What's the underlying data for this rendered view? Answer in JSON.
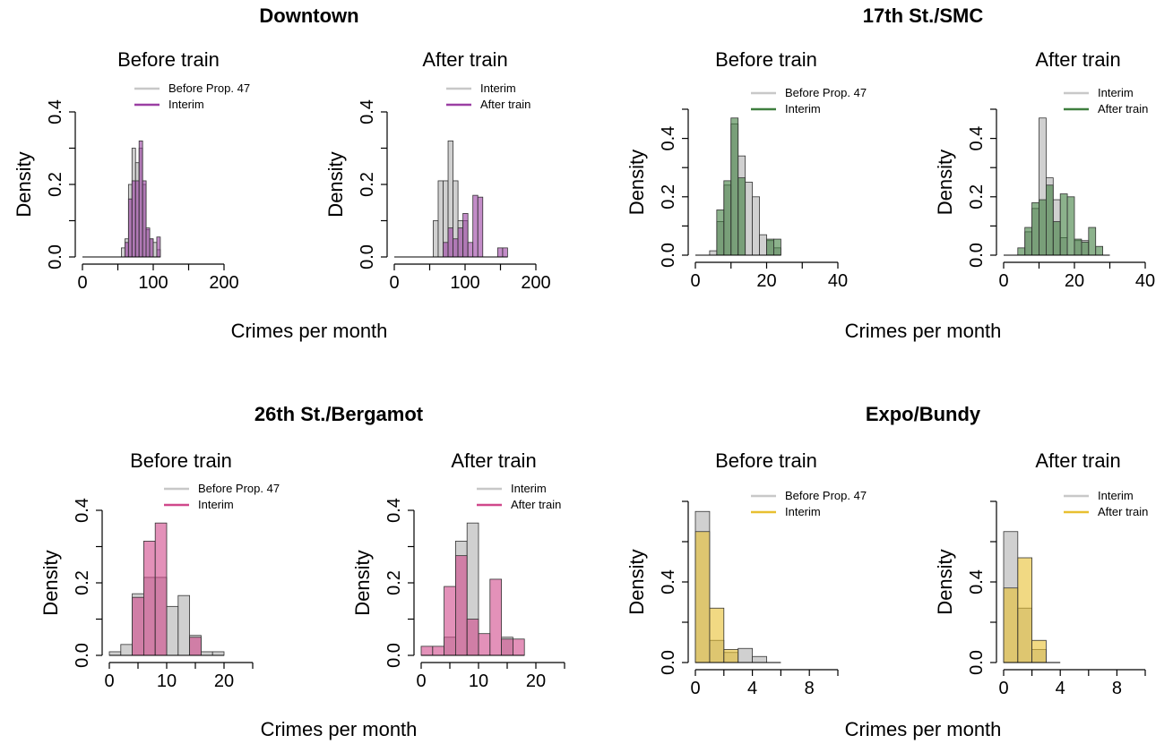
{
  "colors": {
    "gray": "#c8c8c8",
    "purple": "#9b3fa3",
    "green": "#3f7f3f",
    "pink": "#d0488b",
    "gold": "#e8c030",
    "bar_outline": "#333333"
  },
  "chart_data": [
    {
      "type": "histogram",
      "group_title": "Downtown",
      "title": "Before train",
      "xlabel": "",
      "ylabel": "Density",
      "xlim": [
        0,
        200
      ],
      "xticks": [
        0,
        100,
        200
      ],
      "ylim": [
        0,
        0.4
      ],
      "yticks": [
        "0.0",
        "0.2",
        "0.4"
      ],
      "color": "purple",
      "legend": [
        "Before Prop. 47",
        "Interim"
      ],
      "series": [
        {
          "name": "Before Prop. 47",
          "bins": [
            [
              50,
              55,
              0.0
            ],
            [
              55,
              60,
              0.025
            ],
            [
              60,
              65,
              0.05
            ],
            [
              65,
              70,
              0.2
            ],
            [
              70,
              75,
              0.3
            ],
            [
              75,
              80,
              0.26
            ],
            [
              80,
              85,
              0.3
            ],
            [
              85,
              90,
              0.2
            ],
            [
              90,
              95,
              0.075
            ],
            [
              95,
              100,
              0.05
            ],
            [
              100,
              105,
              0.04
            ],
            [
              105,
              110,
              0.02
            ]
          ]
        },
        {
          "name": "Interim",
          "bins": [
            [
              55,
              60,
              0.0
            ],
            [
              60,
              65,
              0.04
            ],
            [
              65,
              70,
              0.16
            ],
            [
              70,
              75,
              0.21
            ],
            [
              75,
              80,
              0.21
            ],
            [
              80,
              85,
              0.32
            ],
            [
              85,
              90,
              0.21
            ],
            [
              90,
              95,
              0.08
            ],
            [
              95,
              100,
              0.05
            ],
            [
              100,
              105,
              0.0
            ],
            [
              105,
              110,
              0.055
            ]
          ]
        }
      ]
    },
    {
      "type": "histogram",
      "group_title": "",
      "title": "After train",
      "xlabel": "",
      "ylabel": "Density",
      "xlim": [
        0,
        200
      ],
      "xticks": [
        0,
        100,
        200
      ],
      "ylim": [
        0,
        0.4
      ],
      "yticks": [
        "0.0",
        "0.2",
        "0.4"
      ],
      "color": "purple",
      "legend": [
        "Interim",
        "After train"
      ],
      "series": [
        {
          "name": "Interim",
          "bins": [
            [
              55,
              62,
              0.1
            ],
            [
              62,
              69,
              0.21
            ],
            [
              69,
              76,
              0.21
            ],
            [
              76,
              83,
              0.32
            ],
            [
              83,
              90,
              0.21
            ],
            [
              90,
              97,
              0.1
            ],
            [
              97,
              104,
              0.1
            ],
            [
              104,
              111,
              0.0
            ]
          ]
        },
        {
          "name": "After train",
          "bins": [
            [
              69,
              76,
              0.04
            ],
            [
              76,
              83,
              0.08
            ],
            [
              83,
              90,
              0.05
            ],
            [
              90,
              97,
              0.08
            ],
            [
              97,
              104,
              0.12
            ],
            [
              104,
              111,
              0.04
            ],
            [
              111,
              118,
              0.17
            ],
            [
              118,
              125,
              0.165
            ],
            [
              125,
              132,
              0.0
            ],
            [
              132,
              139,
              0.0
            ],
            [
              139,
              146,
              0.0
            ],
            [
              146,
              153,
              0.025
            ],
            [
              153,
              160,
              0.025
            ]
          ]
        }
      ]
    },
    {
      "type": "histogram",
      "group_title": "17th St./SMC",
      "title": "Before train",
      "xlabel": "",
      "ylabel": "Density",
      "xlim": [
        0,
        40
      ],
      "xticks": [
        0,
        20,
        40
      ],
      "ylim": [
        0,
        0.5
      ],
      "yticks": [
        "0.0",
        "0.2",
        "0.4"
      ],
      "color": "green",
      "legend": [
        "Before Prop. 47",
        "Interim"
      ],
      "series": [
        {
          "name": "Before Prop. 47",
          "bins": [
            [
              2,
              4,
              0.0
            ],
            [
              4,
              6,
              0.015
            ],
            [
              6,
              8,
              0.115
            ],
            [
              8,
              10,
              0.24
            ],
            [
              10,
              12,
              0.45
            ],
            [
              12,
              14,
              0.34
            ],
            [
              14,
              16,
              0.25
            ],
            [
              16,
              18,
              0.2
            ],
            [
              18,
              20,
              0.07
            ],
            [
              20,
              22,
              0.05
            ],
            [
              22,
              24,
              0.025
            ]
          ]
        },
        {
          "name": "Interim",
          "bins": [
            [
              6,
              8,
              0.0
            ],
            [
              6,
              8,
              0.155
            ],
            [
              8,
              10,
              0.0
            ],
            [
              8,
              10,
              0.255
            ],
            [
              10,
              12,
              0.47
            ],
            [
              12,
              14,
              0.265
            ],
            [
              14,
              16,
              0.0
            ],
            [
              16,
              18,
              0.0
            ],
            [
              18,
              20,
              0.0
            ],
            [
              20,
              22,
              0.055
            ],
            [
              22,
              24,
              0.055
            ]
          ]
        }
      ]
    },
    {
      "type": "histogram",
      "group_title": "",
      "title": "After train",
      "xlabel": "",
      "ylabel": "Density",
      "xlim": [
        0,
        40
      ],
      "xticks": [
        0,
        20,
        40
      ],
      "ylim": [
        0,
        0.5
      ],
      "yticks": [
        "0.0",
        "0.2",
        "0.4"
      ],
      "color": "green",
      "legend": [
        "Interim",
        "After train"
      ],
      "series": [
        {
          "name": "Interim",
          "bins": [
            [
              6,
              8,
              0.08
            ],
            [
              8,
              10,
              0.16
            ],
            [
              10,
              12,
              0.47
            ],
            [
              12,
              14,
              0.265
            ],
            [
              14,
              16,
              0.19
            ],
            [
              16,
              18,
              0.06
            ],
            [
              18,
              20,
              0.0
            ],
            [
              20,
              22,
              0.05
            ],
            [
              22,
              24,
              0.05
            ]
          ]
        },
        {
          "name": "After train",
          "bins": [
            [
              4,
              6,
              0.025
            ],
            [
              6,
              8,
              0.095
            ],
            [
              8,
              10,
              0.18
            ],
            [
              10,
              12,
              0.19
            ],
            [
              12,
              14,
              0.24
            ],
            [
              14,
              16,
              0.115
            ],
            [
              16,
              18,
              0.21
            ],
            [
              18,
              20,
              0.2
            ],
            [
              20,
              22,
              0.055
            ],
            [
              22,
              24,
              0.045
            ],
            [
              24,
              26,
              0.095
            ],
            [
              26,
              28,
              0.03
            ],
            [
              28,
              30,
              0.0
            ]
          ]
        }
      ]
    },
    {
      "type": "histogram",
      "group_title": "26th St./Bergamot",
      "title": "Before train",
      "xlabel": "",
      "ylabel": "Density",
      "xlim": [
        0,
        25
      ],
      "xticks": [
        0,
        10,
        20
      ],
      "ylim": [
        0,
        0.4
      ],
      "yticks": [
        "0.0",
        "0.2",
        "0.4"
      ],
      "color": "pink",
      "legend": [
        "Before Prop. 47",
        "Interim"
      ],
      "series": [
        {
          "name": "Before Prop. 47",
          "bins": [
            [
              0,
              2,
              0.01
            ],
            [
              2,
              4,
              0.03
            ],
            [
              4,
              6,
              0.17
            ],
            [
              6,
              8,
              0.215
            ],
            [
              8,
              10,
              0.215
            ],
            [
              10,
              12,
              0.135
            ],
            [
              12,
              14,
              0.165
            ],
            [
              14,
              16,
              0.055
            ],
            [
              16,
              18,
              0.01
            ],
            [
              18,
              20,
              0.01
            ]
          ]
        },
        {
          "name": "Interim",
          "bins": [
            [
              4,
              6,
              0.16
            ],
            [
              6,
              8,
              0.315
            ],
            [
              8,
              10,
              0.365
            ],
            [
              10,
              12,
              0.0
            ],
            [
              12,
              14,
              0.0
            ],
            [
              14,
              16,
              0.05
            ]
          ]
        }
      ]
    },
    {
      "type": "histogram",
      "group_title": "",
      "title": "After train",
      "xlabel": "",
      "ylabel": "Density",
      "xlim": [
        0,
        25
      ],
      "xticks": [
        0,
        10,
        20
      ],
      "ylim": [
        0,
        0.4
      ],
      "yticks": [
        "0.0",
        "0.2",
        "0.4"
      ],
      "color": "pink",
      "legend": [
        "Interim",
        "After train"
      ],
      "series": [
        {
          "name": "Interim",
          "bins": [
            [
              4,
              6,
              0.05
            ],
            [
              6,
              8,
              0.315
            ],
            [
              8,
              10,
              0.365
            ],
            [
              10,
              12,
              0.0
            ],
            [
              12,
              14,
              0.0
            ],
            [
              14,
              16,
              0.05
            ]
          ]
        },
        {
          "name": "After train",
          "bins": [
            [
              0,
              2,
              0.025
            ],
            [
              2,
              4,
              0.025
            ],
            [
              4,
              6,
              0.19
            ],
            [
              6,
              8,
              0.275
            ],
            [
              8,
              10,
              0.1
            ],
            [
              10,
              12,
              0.06
            ],
            [
              12,
              14,
              0.21
            ],
            [
              14,
              16,
              0.045
            ],
            [
              16,
              18,
              0.045
            ]
          ]
        }
      ]
    },
    {
      "type": "histogram",
      "group_title": "Expo/Bundy",
      "title": "Before train",
      "xlabel": "",
      "ylabel": "Density",
      "xlim": [
        0,
        10
      ],
      "xticks": [
        0,
        4,
        8
      ],
      "ylim": [
        0,
        0.8
      ],
      "yticks": [
        "0.0",
        "0.4"
      ],
      "color": "gold",
      "legend": [
        "Before Prop. 47",
        "Interim"
      ],
      "series": [
        {
          "name": "Before Prop. 47",
          "bins": [
            [
              0,
              1,
              0.75
            ],
            [
              1,
              2,
              0.11
            ],
            [
              2,
              3,
              0.05
            ],
            [
              3,
              4,
              0.07
            ],
            [
              4,
              5,
              0.03
            ],
            [
              5,
              6,
              0.0
            ]
          ]
        },
        {
          "name": "Interim",
          "bins": [
            [
              0,
              1,
              0.65
            ],
            [
              1,
              2,
              0.27
            ],
            [
              2,
              3,
              0.065
            ],
            [
              3,
              4,
              0.0
            ]
          ]
        }
      ]
    },
    {
      "type": "histogram",
      "group_title": "",
      "title": "After train",
      "xlabel": "",
      "ylabel": "Density",
      "xlim": [
        0,
        10
      ],
      "xticks": [
        0,
        4,
        8
      ],
      "ylim": [
        0,
        0.8
      ],
      "yticks": [
        "0.0",
        "0.4"
      ],
      "color": "gold",
      "legend": [
        "Interim",
        "After train"
      ],
      "series": [
        {
          "name": "Interim",
          "bins": [
            [
              0,
              1,
              0.65
            ],
            [
              1,
              2,
              0.27
            ],
            [
              2,
              3,
              0.065
            ],
            [
              3,
              4,
              0.0
            ]
          ]
        },
        {
          "name": "After train",
          "bins": [
            [
              0,
              1,
              0.37
            ],
            [
              1,
              2,
              0.52
            ],
            [
              2,
              3,
              0.11
            ]
          ]
        }
      ]
    }
  ],
  "shared_labels": {
    "row1_xlabel_left": "Crimes per month",
    "row1_xlabel_right": "Crimes per month",
    "row2_xlabel_left": "Crimes per month",
    "row2_xlabel_right": "Crimes per month"
  }
}
